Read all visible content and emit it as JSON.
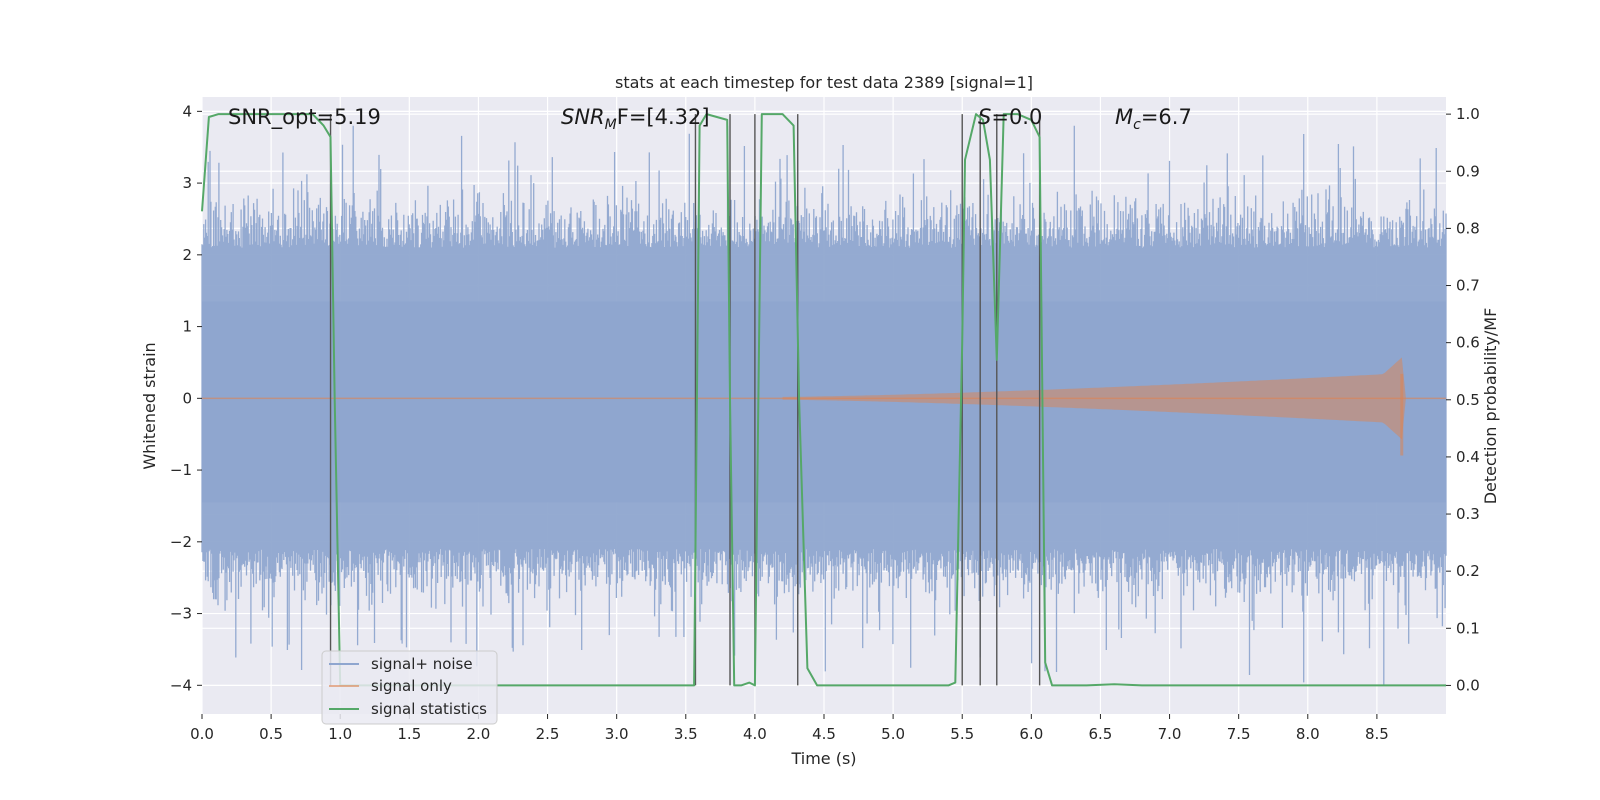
{
  "chart_data": {
    "type": "line",
    "title": "stats at each timestep for test data 2389 [signal=1]",
    "xlabel": "Time (s)",
    "ylabel_left": "Whitened strain",
    "ylabel_right": "Detection probability/MF",
    "xlim": [
      0,
      9
    ],
    "ylim_left": [
      -4.4,
      4.2
    ],
    "ylim_right": [
      -0.05,
      1.03
    ],
    "x_ticks": [
      "0.0",
      "0.5",
      "1.0",
      "1.5",
      "2.0",
      "2.5",
      "3.0",
      "3.5",
      "4.0",
      "4.5",
      "5.0",
      "5.5",
      "6.0",
      "6.5",
      "7.0",
      "7.5",
      "8.0",
      "8.5"
    ],
    "y_left_ticks": [
      "4",
      "3",
      "2",
      "1",
      "0",
      "−1",
      "−2",
      "−3",
      "−4"
    ],
    "y_right_ticks": [
      "1.0",
      "0.9",
      "0.8",
      "0.7",
      "0.6",
      "0.5",
      "0.4",
      "0.3",
      "0.2",
      "0.1",
      "0.0"
    ],
    "annotations": {
      "snr_opt": "SNR_opt=5.19",
      "snr_mf_name": "SNR",
      "snr_mf_sub": "M",
      "snr_mf_value": "F=[4.32]",
      "s_name": "S",
      "s_value": "=0.0",
      "mc_name": "M",
      "mc_sub": "c",
      "mc_value": "=6.7"
    },
    "legend": {
      "placement": "lower-left",
      "entries": [
        {
          "label": "signal+ noise",
          "color": "#8fa6cf"
        },
        {
          "label": "signal only",
          "color": "#dd8452"
        },
        {
          "label": "signal statistics",
          "color": "#55a868"
        }
      ]
    },
    "series": [
      {
        "role": "signal+noise",
        "color": "#8fa6cf",
        "band_envelope": {
          "typical_abs": 2.1,
          "peak_abs": 3.8
        }
      },
      {
        "role": "signal only",
        "color": "#dd8452",
        "chirp": {
          "start_time": 4.2,
          "merger_time": 8.68,
          "peak_amplitude": 0.55
        }
      },
      {
        "role": "signal statistics",
        "color": "#55a868",
        "x": [
          0.0,
          0.05,
          0.12,
          0.2,
          0.3,
          0.4,
          0.5,
          0.6,
          0.7,
          0.8,
          0.88,
          0.93,
          0.96,
          1.0,
          1.1,
          1.5,
          2.0,
          2.5,
          3.0,
          3.4,
          3.56,
          3.6,
          3.65,
          3.8,
          3.82,
          3.85,
          3.9,
          3.96,
          4.0,
          4.05,
          4.1,
          4.2,
          4.28,
          4.32,
          4.38,
          4.45,
          4.6,
          5.0,
          5.4,
          5.45,
          5.5,
          5.52,
          5.6,
          5.65,
          5.7,
          5.75,
          5.8,
          5.9,
          6.0,
          6.06,
          6.1,
          6.15,
          6.2,
          6.4,
          6.6,
          6.8,
          7.0,
          7.5,
          8.0,
          8.5,
          9.0
        ],
        "y": [
          0.83,
          0.995,
          1.0,
          1.0,
          1.0,
          1.0,
          1.0,
          1.0,
          1.0,
          1.0,
          0.98,
          0.96,
          0.5,
          0.0,
          0.0,
          0.0,
          0.0,
          0.0,
          0.0,
          0.0,
          0.0,
          0.98,
          1.0,
          0.99,
          0.5,
          0.0,
          0.0,
          0.005,
          0.0,
          1.0,
          1.0,
          1.0,
          0.98,
          0.5,
          0.03,
          0.0,
          0.0,
          0.0,
          0.0,
          0.005,
          0.6,
          0.92,
          1.0,
          0.99,
          0.92,
          0.57,
          1.0,
          1.0,
          0.99,
          0.96,
          0.04,
          0.0,
          0.0,
          0.0,
          0.002,
          0.0,
          0.0,
          0.0,
          0.0,
          0.0,
          0.0
        ]
      }
    ],
    "vertical_lines_x": [
      0.93,
      3.57,
      3.82,
      4.0,
      4.31,
      5.5,
      5.63,
      5.75,
      6.06
    ],
    "vertical_lines_color": "#555555",
    "background_color": "#eaeaf2",
    "grid": true
  }
}
